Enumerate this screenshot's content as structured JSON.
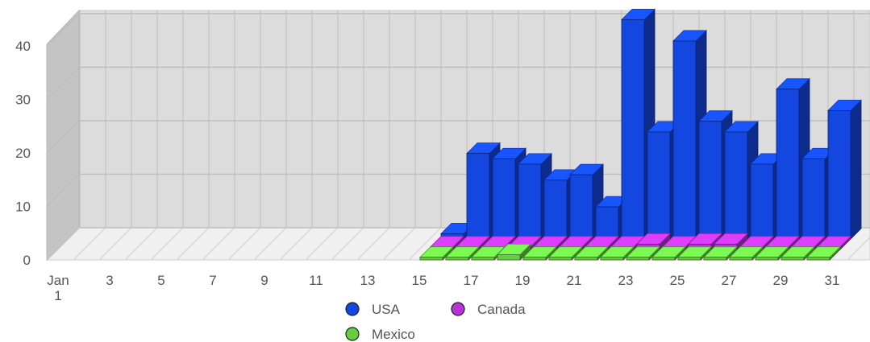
{
  "chart_data": {
    "type": "bar",
    "style": "3d-clustered",
    "x_ticks": [
      "Jan 1",
      "3",
      "5",
      "7",
      "9",
      "11",
      "13",
      "15",
      "17",
      "19",
      "21",
      "23",
      "25",
      "27",
      "29",
      "31"
    ],
    "y_ticks": [
      "0",
      "10",
      "20",
      "30",
      "40"
    ],
    "ylim": [
      0,
      40
    ],
    "xlim": [
      1,
      31
    ],
    "grid": true,
    "legend_position": "bottom",
    "series": [
      {
        "name": "USA",
        "color": "#1446e0",
        "points": [
          [
            16,
            1
          ],
          [
            17,
            16
          ],
          [
            18,
            15
          ],
          [
            19,
            14
          ],
          [
            20,
            11
          ],
          [
            21,
            12
          ],
          [
            22,
            6
          ],
          [
            23,
            41
          ],
          [
            24,
            20
          ],
          [
            25,
            37
          ],
          [
            26,
            22
          ],
          [
            27,
            20
          ],
          [
            28,
            14
          ],
          [
            29,
            28
          ],
          [
            30,
            15
          ],
          [
            31,
            24
          ]
        ]
      },
      {
        "name": "Canada",
        "color": "#b533d8",
        "points": [
          [
            16,
            0.5
          ],
          [
            17,
            0.5
          ],
          [
            18,
            0.5
          ],
          [
            19,
            0.5
          ],
          [
            20,
            0.5
          ],
          [
            21,
            0.5
          ],
          [
            22,
            0.5
          ],
          [
            23,
            0.5
          ],
          [
            24,
            1
          ],
          [
            25,
            0.5
          ],
          [
            26,
            1
          ],
          [
            27,
            1
          ],
          [
            28,
            0.5
          ],
          [
            29,
            0.5
          ],
          [
            30,
            0.5
          ],
          [
            31,
            0.5
          ]
        ]
      },
      {
        "name": "Mexico",
        "color": "#66cc44",
        "points": [
          [
            16,
            0.5
          ],
          [
            17,
            0.5
          ],
          [
            18,
            0.5
          ],
          [
            19,
            1
          ],
          [
            20,
            0.5
          ],
          [
            21,
            0.5
          ],
          [
            22,
            0.5
          ],
          [
            23,
            0.5
          ],
          [
            24,
            0.5
          ],
          [
            25,
            0.5
          ],
          [
            26,
            0.5
          ],
          [
            27,
            0.5
          ],
          [
            28,
            0.5
          ],
          [
            29,
            0.5
          ],
          [
            30,
            0.5
          ],
          [
            31,
            0.5
          ]
        ]
      }
    ]
  }
}
